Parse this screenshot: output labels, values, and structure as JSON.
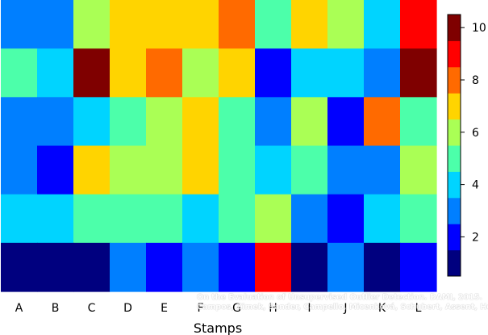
{
  "chart_data": {
    "type": "heatmap",
    "xlabel": "Stamps",
    "ylabel": "",
    "x_categories": [
      "A",
      "B",
      "C",
      "D",
      "E",
      "F",
      "G",
      "H",
      "I",
      "J",
      "K",
      "L"
    ],
    "rows_top_to_bottom": [
      [
        3,
        3,
        6,
        7,
        7,
        7,
        8,
        5,
        7,
        6,
        4,
        9
      ],
      [
        5,
        4,
        10,
        7,
        8,
        6,
        7,
        2,
        4,
        4,
        3,
        10
      ],
      [
        3,
        3,
        4,
        5,
        6,
        7,
        5,
        3,
        6,
        2,
        8,
        5
      ],
      [
        3,
        2,
        7,
        6,
        6,
        7,
        5,
        4,
        5,
        3,
        3,
        6
      ],
      [
        4,
        4,
        5,
        5,
        5,
        4,
        5,
        6,
        3,
        2,
        4,
        5
      ],
      [
        1,
        1,
        1,
        3,
        2,
        3,
        2,
        9,
        1,
        3,
        1,
        2
      ]
    ],
    "colorbar": {
      "min": 0.5,
      "max": 10.5,
      "ticks": [
        2,
        4,
        6,
        8,
        10
      ],
      "colors": [
        "#00007F",
        "#0000FF",
        "#007FFF",
        "#00D4FF",
        "#4CFFAA",
        "#AAFF55",
        "#FFD400",
        "#FF6A00",
        "#FF0000",
        "#7F0000"
      ]
    },
    "grid": false,
    "legend": "right"
  },
  "credit": {
    "line1": "On the Evaluation of Unsupervised Outlier Detection. DAMI, 2015.",
    "line2": "Campos, Zimek, Sander, Campello, Micenková, Schubert, Assent, Houle"
  }
}
